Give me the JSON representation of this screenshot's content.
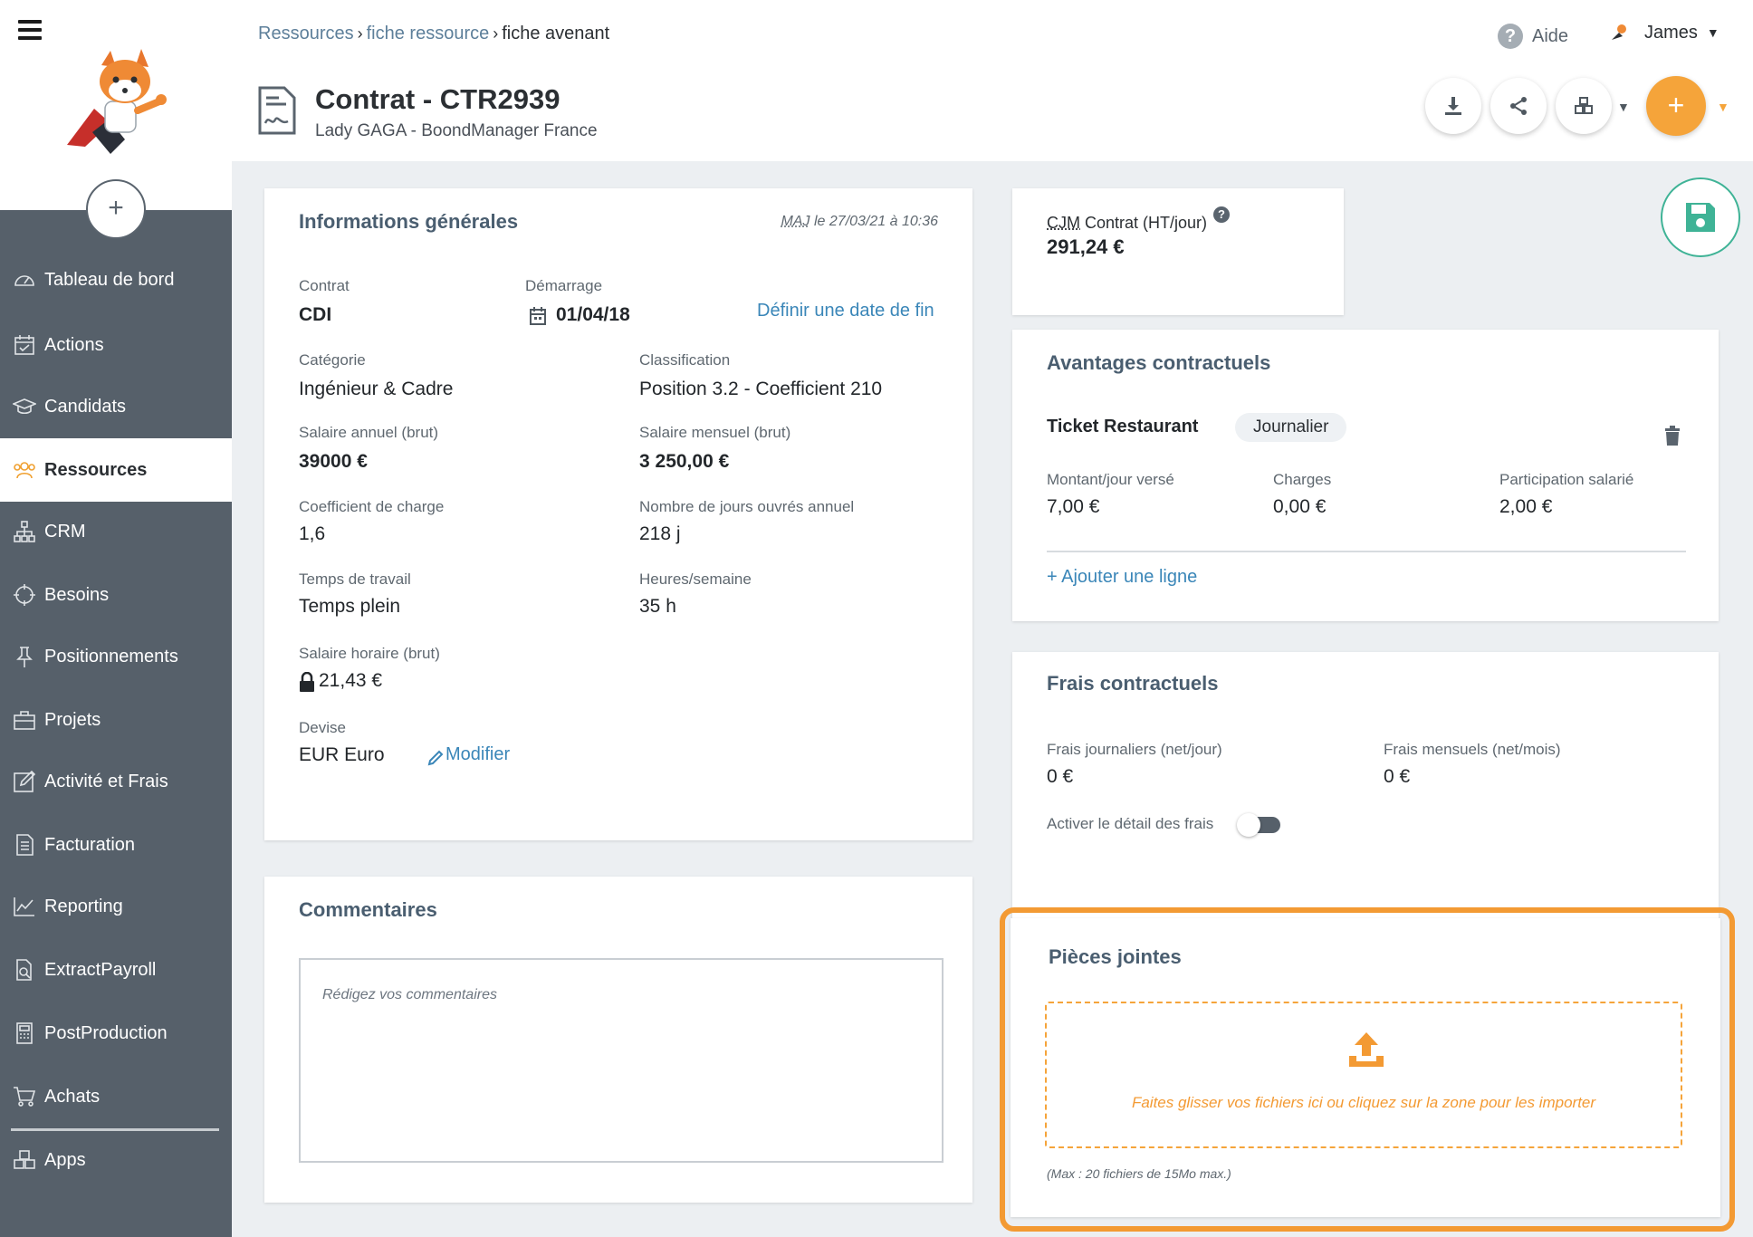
{
  "sidebar": {
    "items": [
      {
        "label": "Tableau de bord",
        "icon": "dashboard-icon"
      },
      {
        "label": "Actions",
        "icon": "calendar-check-icon"
      },
      {
        "label": "Candidats",
        "icon": "graduation-cap-icon"
      },
      {
        "label": "Ressources",
        "icon": "users-icon"
      },
      {
        "label": "CRM",
        "icon": "sitemap-icon"
      },
      {
        "label": "Besoins",
        "icon": "crosshair-icon"
      },
      {
        "label": "Positionnements",
        "icon": "pushpin-icon"
      },
      {
        "label": "Projets",
        "icon": "briefcase-icon"
      },
      {
        "label": "Activité et Frais",
        "icon": "edit-icon"
      },
      {
        "label": "Facturation",
        "icon": "invoice-icon"
      },
      {
        "label": "Reporting",
        "icon": "chart-line-icon"
      },
      {
        "label": "ExtractPayroll",
        "icon": "file-export-icon"
      },
      {
        "label": "PostProduction",
        "icon": "calculator-icon"
      },
      {
        "label": "Achats",
        "icon": "cart-icon"
      },
      {
        "label": "Apps",
        "icon": "cubes-icon"
      }
    ],
    "active": "Ressources",
    "add_label": "+"
  },
  "header": {
    "breadcrumb": [
      "Ressources",
      "fiche ressource",
      "fiche avenant"
    ],
    "help_label": "Aide",
    "user_name": "James",
    "title": "Contrat - CTR2939",
    "subtitle": "Lady GAGA - BoondManager France",
    "add_label": "+"
  },
  "infos": {
    "title": "Informations générales",
    "maj_abbr": "MAJ",
    "maj_rest": " le 27/03/21 à 10:36",
    "contrat_label": "Contrat",
    "contrat_value": "CDI",
    "demarrage_label": "Démarrage",
    "demarrage_value": "01/04/18",
    "date_fin_link": "Définir une date de fin",
    "categorie_label": "Catégorie",
    "categorie_value": "Ingénieur & Cadre",
    "classification_label": "Classification",
    "classification_value": "Position 3.2 - Coefficient 210",
    "salaire_annuel_label": "Salaire annuel (brut)",
    "salaire_annuel_value": "39000 €",
    "salaire_mensuel_label": "Salaire mensuel (brut)",
    "salaire_mensuel_value": "3 250,00 €",
    "coef_label": "Coefficient de charge",
    "coef_value": "1,6",
    "jours_label": "Nombre de jours ouvrés annuel",
    "jours_value": "218 j",
    "temps_label": "Temps de travail",
    "temps_value": "Temps plein",
    "heures_label": "Heures/semaine",
    "heures_value": "35 h",
    "horaire_label": "Salaire horaire (brut)",
    "horaire_value": "21,43 €",
    "devise_label": "Devise",
    "devise_value": "EUR Euro",
    "modifier_link": "Modifier"
  },
  "cjm": {
    "abbr": "CJM",
    "label_rest": " Contrat (HT/jour)",
    "value": "291,24 €"
  },
  "avantages": {
    "title": "Avantages contractuels",
    "item_name": "Ticket Restaurant",
    "item_chip": "Journalier",
    "montant_label": "Montant/jour versé",
    "montant_value": "7,00 €",
    "charges_label": "Charges",
    "charges_value": "0,00 €",
    "participation_label": "Participation salarié",
    "participation_value": "2,00 €",
    "add_line": "+ Ajouter une ligne"
  },
  "frais": {
    "title": "Frais contractuels",
    "journaliers_label": "Frais journaliers (net/jour)",
    "journaliers_value": "0 €",
    "mensuels_label": "Frais mensuels (net/mois)",
    "mensuels_value": "0 €",
    "detail_label": "Activer le détail des frais",
    "detail_enabled": false
  },
  "commentaires": {
    "title": "Commentaires",
    "placeholder": "Rédigez vos commentaires"
  },
  "pieces": {
    "title": "Pièces jointes",
    "dropzone_text": "Faites glisser vos fichiers ici ou cliquez sur la zone pour les importer",
    "note": "(Max : 20 fichiers de 15Mo max.)"
  },
  "colors": {
    "accent_orange": "#f5a43a",
    "link_blue": "#3a86b8",
    "save_green": "#3fb396",
    "sidebar_bg": "#56606a"
  }
}
